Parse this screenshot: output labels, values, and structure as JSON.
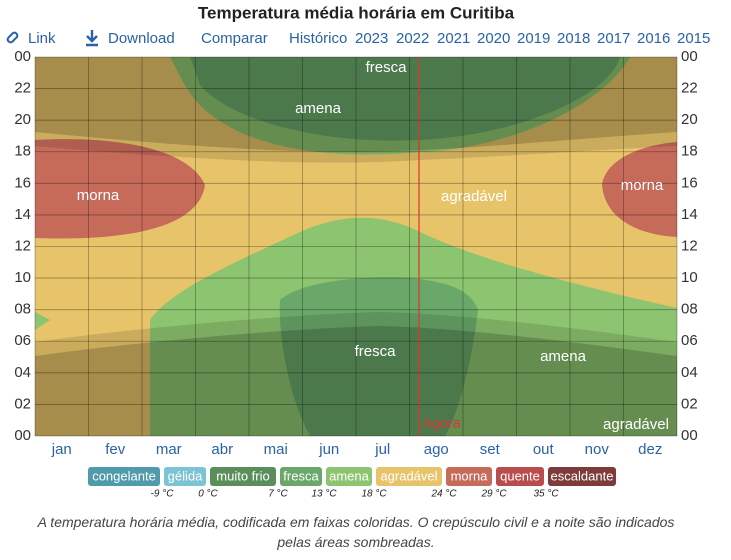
{
  "chart_data": {
    "type": "banded-heatmap",
    "title": "Temperatura média horária em Curitiba",
    "toolbar": [
      "Link",
      "Download",
      "Comparar",
      "Histórico",
      "2023",
      "2022",
      "2021",
      "2020",
      "2019",
      "2018",
      "2017",
      "2016",
      "2015"
    ],
    "categories": [
      "jan",
      "fev",
      "mar",
      "abr",
      "mai",
      "jun",
      "jul",
      "ago",
      "set",
      "out",
      "nov",
      "dez"
    ],
    "ylim": [
      0,
      24
    ],
    "yticks": [
      {
        "value": 0,
        "label": "00"
      },
      {
        "value": 2,
        "label": "02"
      },
      {
        "value": 4,
        "label": "04"
      },
      {
        "value": 6,
        "label": "06"
      },
      {
        "value": 8,
        "label": "08"
      },
      10,
      12,
      14,
      16,
      18,
      20,
      22,
      {
        "value": 24,
        "label": "00"
      }
    ],
    "grid": true,
    "region_labels": [
      "fresca",
      "amena",
      "morna",
      "agradável",
      "morna",
      "fresca",
      "amena",
      "agradável"
    ],
    "now_label": "Agora",
    "legend": [
      {
        "name": "congelante",
        "color": "#4f9bab"
      },
      {
        "name": "gélida",
        "color": "#7cc3d6"
      },
      {
        "name": "muito frio",
        "color": "#5a8f5c"
      },
      {
        "name": "fresca",
        "color": "#6aa86a"
      },
      {
        "name": "amena",
        "color": "#8dc46f"
      },
      {
        "name": "agradável",
        "color": "#e7c46a"
      },
      {
        "name": "morna",
        "color": "#c66a5a"
      },
      {
        "name": "quente",
        "color": "#b94d4d"
      },
      {
        "name": "escaldante",
        "color": "#7f3a3a"
      }
    ],
    "thresholds": [
      "-9 °C",
      "0 °C",
      "7 °C",
      "13 °C",
      "18 °C",
      "24 °C",
      "29 °C",
      "35 °C"
    ],
    "caption": "A temperatura horária média, codificada em faixas coloridas. O crepúsculo civil e a noite são indicados pelas áreas sombreadas."
  }
}
